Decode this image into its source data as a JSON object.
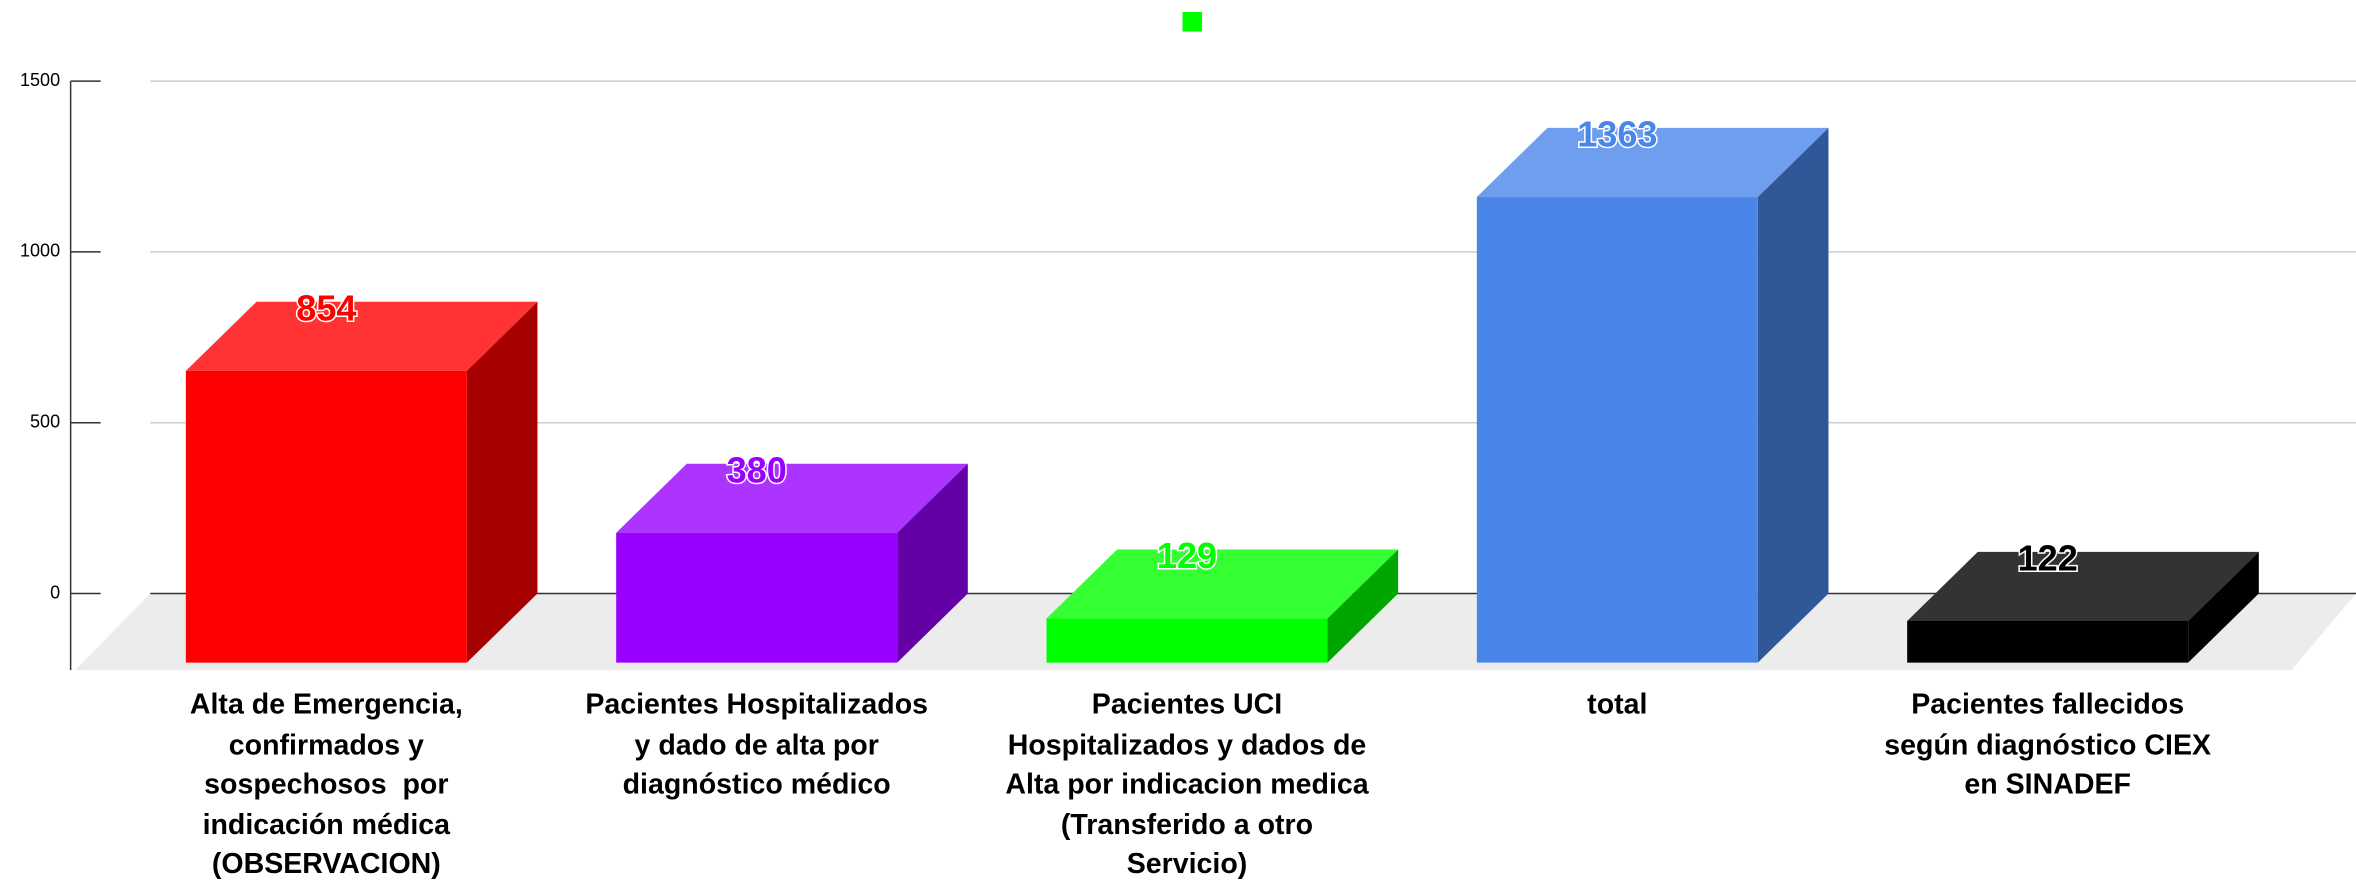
{
  "chart_data": {
    "type": "bar3d",
    "categories": [
      "Alta de Emergencia,\nconfirmados y\nsospechosos  por\nindicación médica\n(OBSERVACION)",
      "Pacientes Hospitalizados\ny dado de alta por\ndiagnóstico médico",
      "Pacientes UCI\nHospitalizados y dados de\nAlta por indicacion medica\n(Transferido a otro\nServicio)",
      "total",
      "Pacientes fallecidos\nsegún diagnóstico CIEX\nen SINADEF"
    ],
    "values": [
      854,
      380,
      129,
      1363,
      122
    ],
    "colors": [
      "#ff0000",
      "#9900ff",
      "#00ff00",
      "#4a86e8",
      "#000000"
    ],
    "ylim": [
      0,
      1500
    ],
    "yticks": [
      0,
      500,
      1000,
      1500
    ],
    "grid": true
  }
}
